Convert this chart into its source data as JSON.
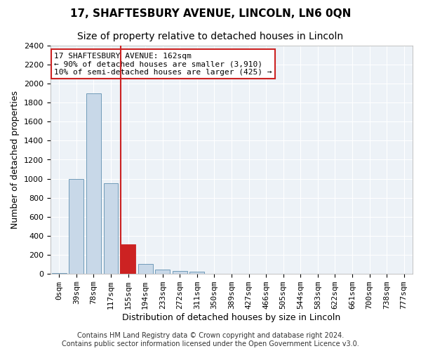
{
  "title": "17, SHAFTESBURY AVENUE, LINCOLN, LN6 0QN",
  "subtitle": "Size of property relative to detached houses in Lincoln",
  "xlabel": "Distribution of detached houses by size in Lincoln",
  "ylabel": "Number of detached properties",
  "categories": [
    "0sqm",
    "39sqm",
    "78sqm",
    "117sqm",
    "155sqm",
    "194sqm",
    "233sqm",
    "272sqm",
    "311sqm",
    "350sqm",
    "389sqm",
    "427sqm",
    "466sqm",
    "505sqm",
    "544sqm",
    "583sqm",
    "622sqm",
    "661sqm",
    "700sqm",
    "738sqm",
    "777sqm"
  ],
  "values": [
    10,
    1000,
    1900,
    950,
    310,
    105,
    45,
    30,
    20,
    0,
    0,
    0,
    0,
    0,
    0,
    0,
    0,
    0,
    0,
    0,
    0
  ],
  "bar_color": "#c8d8e8",
  "bar_edge_color": "#6090b0",
  "highlight_bar_index": 4,
  "highlight_color": "#cc2222",
  "vline_color": "#cc2222",
  "annotation_text": "17 SHAFTESBURY AVENUE: 162sqm\n← 90% of detached houses are smaller (3,910)\n10% of semi-detached houses are larger (425) →",
  "annotation_box_color": "#ffffff",
  "annotation_box_edge": "#cc2222",
  "ylim": [
    0,
    2400
  ],
  "yticks": [
    0,
    200,
    400,
    600,
    800,
    1000,
    1200,
    1400,
    1600,
    1800,
    2000,
    2200,
    2400
  ],
  "footer": "Contains HM Land Registry data © Crown copyright and database right 2024.\nContains public sector information licensed under the Open Government Licence v3.0.",
  "background_color": "#edf2f7",
  "grid_color": "#ffffff",
  "title_fontsize": 11,
  "subtitle_fontsize": 10,
  "xlabel_fontsize": 9,
  "ylabel_fontsize": 9,
  "tick_fontsize": 8,
  "annotation_fontsize": 8,
  "footer_fontsize": 7
}
